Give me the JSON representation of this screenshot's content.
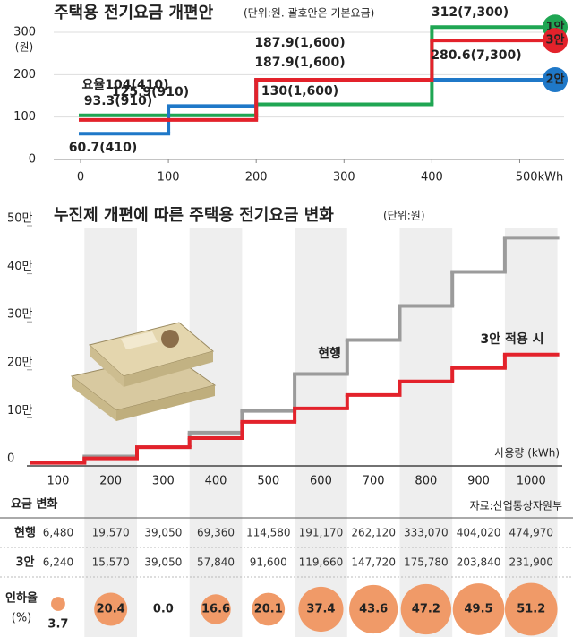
{
  "chart_data": [
    {
      "type": "step",
      "title": "주택용 전기요금 개편안",
      "subtitle": "(단위:원. 괄호안은 기본요금)",
      "y_unit": "(원)",
      "xlim": [
        0,
        525
      ],
      "xticks": [
        0,
        100,
        200,
        300,
        400,
        {
          "value": 500,
          "label": "500kWh"
        }
      ],
      "ylim": [
        0,
        320
      ],
      "yticks": [
        0,
        100,
        200,
        300
      ],
      "grid": true,
      "x": [
        0,
        100,
        200,
        300,
        400
      ],
      "series": [
        {
          "name": "1안",
          "color": "#1fa653",
          "values": [
            104,
            104,
            130,
            130,
            312
          ],
          "value_labels": [
            "요율104(410)",
            null,
            "130(1,600)",
            null,
            "312(7,300)"
          ]
        },
        {
          "name": "2안",
          "color": "#1f78c8",
          "values": [
            60.7,
            125.9,
            187.9,
            187.9,
            187.9
          ],
          "value_labels": [
            "60.7(410)",
            "125.9(910)",
            "187.9(1,600)",
            null,
            null
          ]
        },
        {
          "name": "3안",
          "color": "#e3222b",
          "values": [
            93.3,
            93.3,
            187.9,
            187.9,
            280.6
          ],
          "value_labels": [
            "93.3(910)",
            null,
            "187.9(1,600)",
            null,
            "280.6(7,300)"
          ]
        }
      ]
    },
    {
      "type": "step",
      "title": "누진제 개편에 따른 주택용 전기요금 변화",
      "subtitle": "(단위:원)",
      "x_label": "사용량 (kWh)",
      "categories": [
        100,
        200,
        300,
        400,
        500,
        600,
        700,
        800,
        900,
        1000
      ],
      "ylim": [
        0,
        500000
      ],
      "yticks": [
        0,
        {
          "value": 100000,
          "label": "10만"
        },
        {
          "value": 200000,
          "label": "20만"
        },
        {
          "value": 300000,
          "label": "30만"
        },
        {
          "value": 400000,
          "label": "40만"
        },
        {
          "value": 500000,
          "label": "50만"
        }
      ],
      "series": [
        {
          "name": "현행",
          "color": "#9b9b9b",
          "values": [
            6480,
            19570,
            39050,
            69360,
            114580,
            191170,
            262120,
            333070,
            404020,
            474970
          ],
          "value_labels": [
            "6,480",
            "19,570",
            "39,050",
            "69,360",
            "114,580",
            "191,170",
            "262,120",
            "333,070",
            "404,020",
            "474,970"
          ]
        },
        {
          "name": "3안 적용 시",
          "color": "#e3222b",
          "values": [
            6240,
            15570,
            39050,
            57840,
            91600,
            119660,
            147720,
            175780,
            203840,
            231900
          ],
          "value_labels": [
            "6,240",
            "15,570",
            "39,050",
            "57,840",
            "91,600",
            "119,660",
            "147,720",
            "175,780",
            "203,840",
            "231,900"
          ]
        }
      ],
      "table": {
        "title": "요금 변화",
        "source": "자료:산업통상자원부",
        "row_labels": [
          "현행",
          "3안"
        ]
      },
      "reduction": {
        "label": "인하율",
        "unit": "(%)",
        "color": "#f09a68",
        "values": [
          3.7,
          20.4,
          0,
          16.6,
          20.1,
          37.4,
          43.6,
          47.2,
          49.5,
          51.2
        ],
        "value_labels": [
          "3.7",
          "20.4",
          "0.0",
          "16.6",
          "20.1",
          "37.4",
          "43.6",
          "47.2",
          "49.5",
          "51.2"
        ]
      }
    }
  ]
}
